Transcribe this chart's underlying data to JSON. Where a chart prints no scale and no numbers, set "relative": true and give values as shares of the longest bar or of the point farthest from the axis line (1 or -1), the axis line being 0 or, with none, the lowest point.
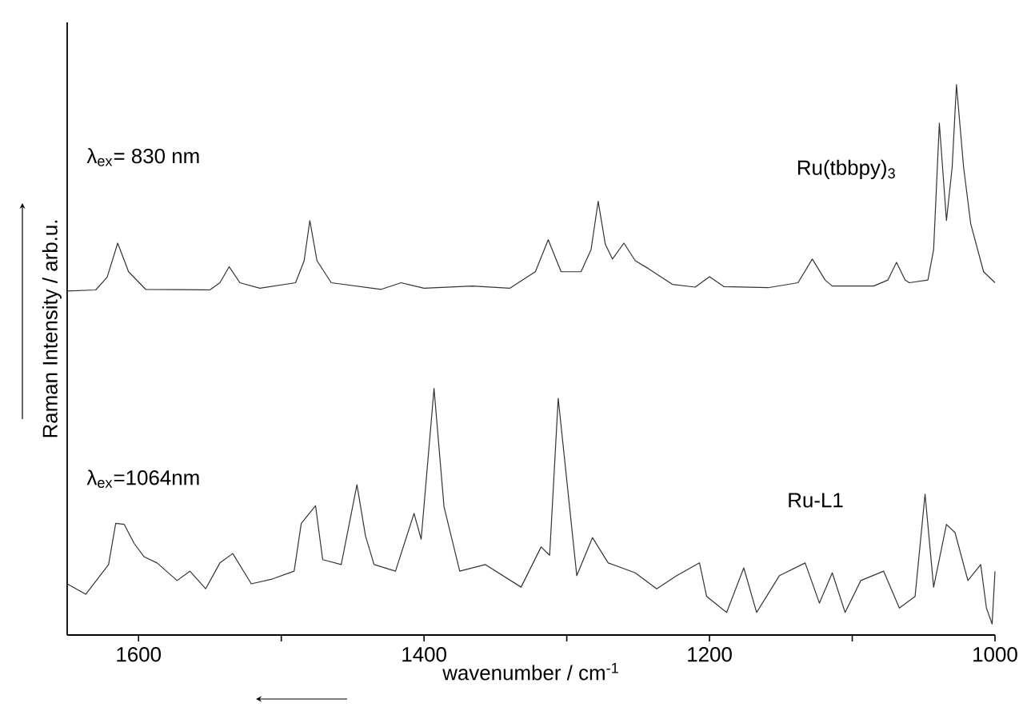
{
  "chart_data": {
    "type": "line",
    "relative": true,
    "xlabel": "wavenumber / cm$^{-1}$",
    "ylabel": "Raman Intensity / arb.u.",
    "xlim": [
      1650,
      1000
    ],
    "xticks": [
      1600,
      {
        "value": 1500,
        "label": null
      },
      1400,
      {
        "value": 1300,
        "label": null
      },
      1200,
      {
        "value": 1100,
        "label": null
      },
      1000
    ],
    "tick_labels": "x",
    "marker": "none",
    "line_style": "solid",
    "annotations": [
      "λ$_{ex}$= 830 nm",
      "λ$_{ex}$=1064nm"
    ],
    "series": [
      {
        "name": "Ru(tbbpy)$_{3}$",
        "color": "#333333",
        "x": [
          1650,
          1630,
          1622,
          1614.6,
          1607,
          1595,
          1550,
          1543,
          1536.5,
          1529,
          1515,
          1490,
          1484,
          1480,
          1475,
          1465,
          1430,
          1416,
          1400,
          1366,
          1340,
          1322,
          1313,
          1304,
          1290,
          1283,
          1278,
          1273,
          1268,
          1260,
          1252,
          1243,
          1226,
          1210,
          1200,
          1190,
          1159,
          1138,
          1128,
          1119,
          1114,
          1085,
          1075,
          1069,
          1063,
          1060,
          1047,
          1043,
          1039,
          1034,
          1030,
          1027,
          1022,
          1017,
          1008,
          1000
        ],
        "values": [
          0.625,
          0.627,
          0.65,
          0.712,
          0.66,
          0.628,
          0.627,
          0.64,
          0.669,
          0.64,
          0.63,
          0.64,
          0.68,
          0.753,
          0.68,
          0.64,
          0.628,
          0.64,
          0.63,
          0.634,
          0.63,
          0.66,
          0.718,
          0.66,
          0.66,
          0.7,
          0.788,
          0.71,
          0.683,
          0.712,
          0.68,
          0.666,
          0.637,
          0.632,
          0.651,
          0.633,
          0.631,
          0.64,
          0.683,
          0.645,
          0.634,
          0.634,
          0.645,
          0.677,
          0.645,
          0.64,
          0.645,
          0.7,
          0.93,
          0.753,
          0.85,
          1.0,
          0.85,
          0.747,
          0.66,
          0.64
        ]
      },
      {
        "name": "Ru-L1",
        "color": "#333333",
        "x": [
          1650,
          1637,
          1621,
          1616,
          1610,
          1603,
          1596,
          1587,
          1573,
          1564,
          1553,
          1543,
          1534,
          1521,
          1506,
          1491,
          1486,
          1476,
          1471,
          1458,
          1447,
          1441,
          1435,
          1420,
          1407,
          1402,
          1393,
          1386,
          1375,
          1357,
          1332,
          1318,
          1312,
          1306,
          1293,
          1282,
          1271,
          1252,
          1237,
          1223,
          1207,
          1202,
          1188,
          1176,
          1167,
          1151,
          1133,
          1123,
          1114,
          1105,
          1094,
          1078,
          1067,
          1056,
          1049,
          1043,
          1034,
          1028,
          1019,
          1010,
          1006,
          1002,
          1000
        ],
        "values": [
          0.093,
          0.074,
          0.128,
          0.203,
          0.201,
          0.166,
          0.142,
          0.131,
          0.099,
          0.116,
          0.084,
          0.131,
          0.148,
          0.093,
          0.102,
          0.116,
          0.203,
          0.235,
          0.137,
          0.128,
          0.273,
          0.18,
          0.128,
          0.116,
          0.221,
          0.174,
          0.448,
          0.233,
          0.116,
          0.128,
          0.087,
          0.16,
          0.145,
          0.43,
          0.108,
          0.177,
          0.131,
          0.113,
          0.084,
          0.108,
          0.131,
          0.07,
          0.041,
          0.122,
          0.041,
          0.108,
          0.131,
          0.058,
          0.113,
          0.041,
          0.099,
          0.116,
          0.049,
          0.07,
          0.256,
          0.087,
          0.201,
          0.186,
          0.099,
          0.128,
          0.049,
          0.02,
          0.116
        ]
      }
    ]
  }
}
